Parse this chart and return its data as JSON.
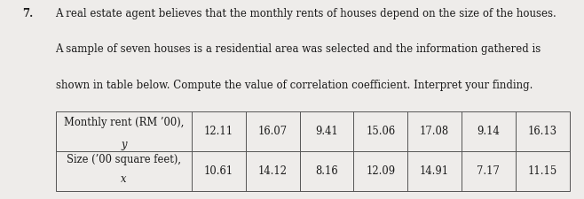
{
  "question_number": "7.",
  "text_line1": "A real estate agent believes that the monthly rents of houses depend on the size of the houses.",
  "text_line2": "A sample of seven houses is a residential area was selected and the information gathered is",
  "text_line3": "shown in table below. Compute the value of correlation coefficient. Interpret your finding.",
  "row1_header_line1": "Monthly rent (RM ’00),",
  "row1_header_line2": "y",
  "row2_header_line1": "Size (’00 square feet),",
  "row2_header_line2": "x",
  "row1_values": [
    "12.11",
    "16.07",
    "9.41",
    "15.06",
    "17.08",
    "9.14",
    "16.13"
  ],
  "row2_values": [
    "10.61",
    "14.12",
    "8.16",
    "12.09",
    "14.91",
    "7.17",
    "11.15"
  ],
  "background_color": "#eeecea",
  "text_color": "#1a1a1a",
  "table_line_color": "#555555",
  "font_size_text": 8.5,
  "font_size_table": 8.3,
  "font_family": "serif"
}
